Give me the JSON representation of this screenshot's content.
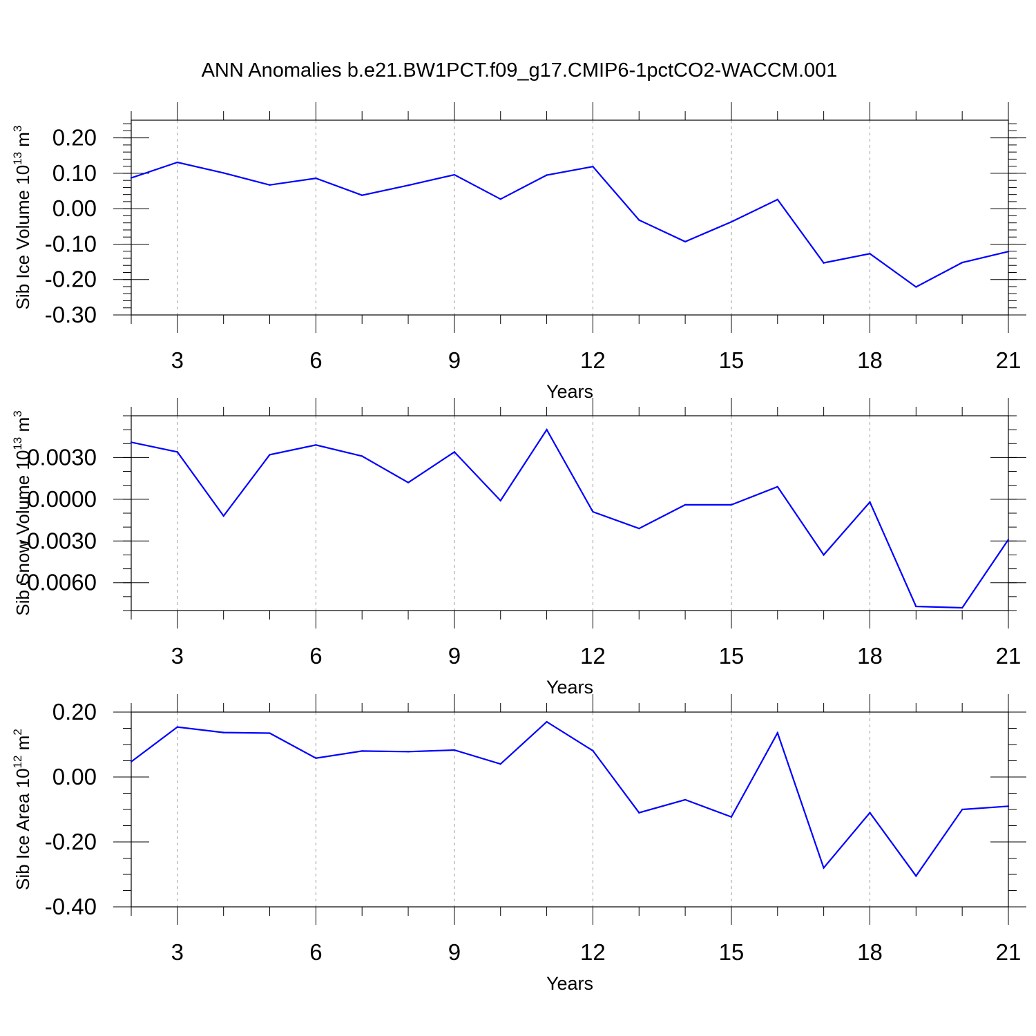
{
  "title": "ANN Anomalies b.e21.BW1PCT.f09_g17.CMIP6-1pctCO2-WACCM.001",
  "colors": {
    "line": "#0000ff",
    "axis": "#000000",
    "grid": "#999999"
  },
  "chart_data": [
    {
      "type": "line",
      "ylabel_main": "Sib Ice Volume 10",
      "ylabel_exp": "13",
      "ylabel_unit": " m",
      "ylabel_unit_exp": "3",
      "xlabel": "Years",
      "xlim": [
        2,
        21
      ],
      "ylim": [
        -0.3,
        0.25
      ],
      "xticks": [
        3,
        6,
        9,
        12,
        15,
        18,
        21
      ],
      "xtick_labels": [
        "3",
        "6",
        "9",
        "12",
        "15",
        "18",
        "21"
      ],
      "yticks": [
        0.2,
        0.1,
        0.0,
        -0.1,
        -0.2,
        -0.3
      ],
      "ytick_labels": [
        "0.20",
        "0.10",
        "0.00",
        "-0.10",
        "-0.20",
        "-0.30"
      ],
      "yminor_step": 0.02,
      "grid": "vertical dashed",
      "x": [
        2,
        3,
        4,
        5,
        6,
        7,
        8,
        9,
        10,
        11,
        12,
        13,
        14,
        15,
        16,
        17,
        18,
        19,
        20,
        21
      ],
      "y": [
        0.087,
        0.131,
        0.101,
        0.067,
        0.086,
        0.038,
        0.066,
        0.096,
        0.027,
        0.095,
        0.119,
        -0.032,
        -0.093,
        -0.037,
        0.026,
        -0.153,
        -0.127,
        -0.221,
        -0.152,
        -0.121
      ]
    },
    {
      "type": "line",
      "ylabel_main": "Sib Snow Volume 10",
      "ylabel_exp": "13",
      "ylabel_unit": " m",
      "ylabel_unit_exp": "3",
      "xlabel": "Years",
      "xlim": [
        2,
        21
      ],
      "ylim": [
        -0.008,
        0.006
      ],
      "xticks": [
        3,
        6,
        9,
        12,
        15,
        18,
        21
      ],
      "xtick_labels": [
        "3",
        "6",
        "9",
        "12",
        "15",
        "18",
        "21"
      ],
      "yticks": [
        0.003,
        0.0,
        -0.003,
        -0.006
      ],
      "ytick_labels": [
        "0.0030",
        "0.0000",
        "-0.0030",
        "-0.0060"
      ],
      "yminor_step": 0.001,
      "grid": "vertical dashed",
      "x": [
        2,
        3,
        4,
        5,
        6,
        7,
        8,
        9,
        10,
        11,
        12,
        13,
        14,
        15,
        16,
        17,
        18,
        19,
        20,
        21
      ],
      "y": [
        0.0041,
        0.0034,
        -0.0012,
        0.0032,
        0.0039,
        0.0031,
        0.0012,
        0.0034,
        -0.0001,
        0.005,
        -0.0009,
        -0.0021,
        -0.0004,
        -0.0004,
        0.0009,
        -0.004,
        -0.0002,
        -0.0077,
        -0.0078,
        -0.0029
      ]
    },
    {
      "type": "line",
      "ylabel_main": "Sib Ice Area 10",
      "ylabel_exp": "12",
      "ylabel_unit": " m",
      "ylabel_unit_exp": "2",
      "xlabel": "Years",
      "xlim": [
        2,
        21
      ],
      "ylim": [
        -0.4,
        0.2
      ],
      "xticks": [
        3,
        6,
        9,
        12,
        15,
        18,
        21
      ],
      "xtick_labels": [
        "3",
        "6",
        "9",
        "12",
        "15",
        "18",
        "21"
      ],
      "yticks": [
        0.2,
        0.0,
        -0.2,
        -0.4
      ],
      "ytick_labels": [
        "0.20",
        "0.00",
        "-0.20",
        "-0.40"
      ],
      "yminor_step": 0.05,
      "grid": "vertical dashed",
      "x": [
        2,
        3,
        4,
        5,
        6,
        7,
        8,
        9,
        10,
        11,
        12,
        13,
        14,
        15,
        16,
        17,
        18,
        19,
        20,
        21
      ],
      "y": [
        0.047,
        0.154,
        0.137,
        0.135,
        0.058,
        0.08,
        0.078,
        0.083,
        0.04,
        0.17,
        0.081,
        -0.11,
        -0.07,
        -0.123,
        0.136,
        -0.28,
        -0.11,
        -0.305,
        -0.1,
        -0.09
      ]
    }
  ]
}
